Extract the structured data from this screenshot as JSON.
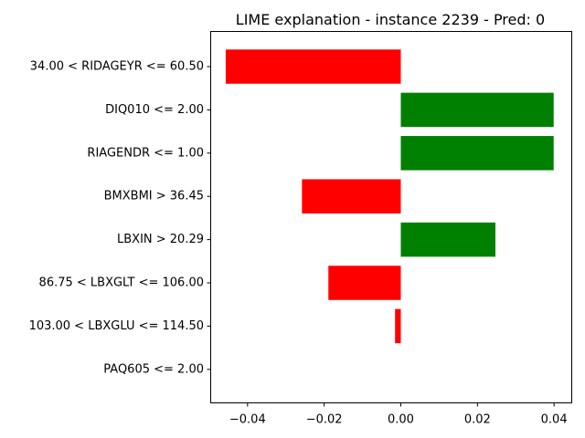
{
  "chart_data": {
    "type": "bar",
    "orientation": "horizontal",
    "title": "LIME explanation - instance 2239 - Pred: 0",
    "xlabel": "",
    "ylabel": "",
    "xlim": [
      -0.0495,
      0.0445
    ],
    "x_ticks": [
      -0.04,
      -0.02,
      0.0,
      0.02,
      0.04
    ],
    "x_tick_labels": [
      "−0.04",
      "−0.02",
      "0.00",
      "0.02",
      "0.04"
    ],
    "categories": [
      "34.00 < RIDAGEYR <= 60.50",
      "DIQ010 <= 2.00",
      "RIAGENDR <= 1.00",
      "BMXBMI > 36.45",
      "LBXIN > 20.29",
      "86.75 < LBXGLT <= 106.00",
      "103.00 < LBXGLU <= 114.50",
      "PAQ605 <= 2.00"
    ],
    "values": [
      -0.0457,
      0.0399,
      0.0399,
      -0.0258,
      0.0247,
      -0.0189,
      -0.0015,
      0.0
    ],
    "colors": {
      "positive": "#008000",
      "negative": "#ff0000",
      "axis": "#000000"
    },
    "grid": false,
    "legend": "none"
  }
}
